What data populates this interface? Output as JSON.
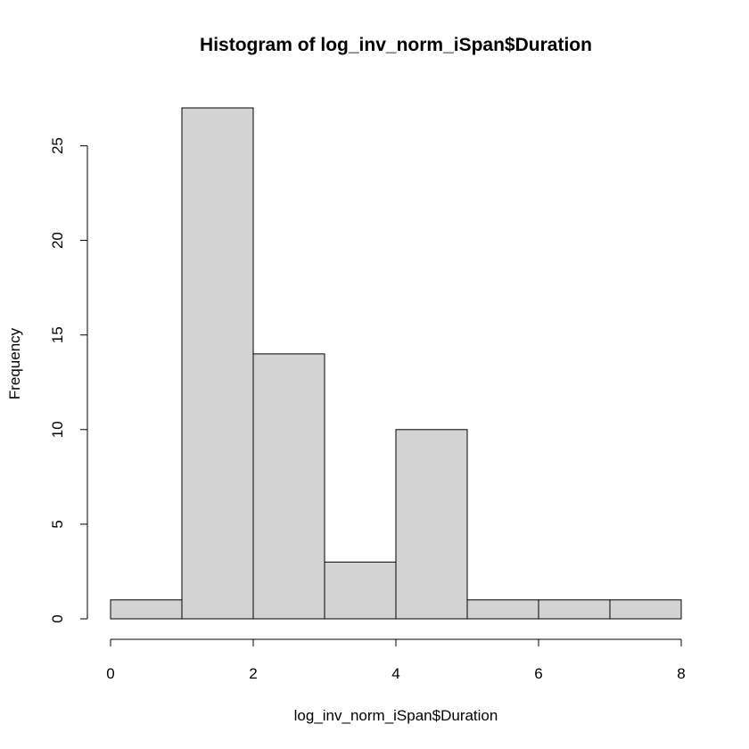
{
  "chart_data": {
    "type": "bar",
    "title": "Histogram of log_inv_norm_iSpan$Duration",
    "xlabel": "log_inv_norm_iSpan$Duration",
    "ylabel": "Frequency",
    "bins": [
      {
        "start": 0,
        "end": 1,
        "count": 1
      },
      {
        "start": 1,
        "end": 2,
        "count": 27
      },
      {
        "start": 2,
        "end": 3,
        "count": 14
      },
      {
        "start": 3,
        "end": 4,
        "count": 3
      },
      {
        "start": 4,
        "end": 5,
        "count": 10
      },
      {
        "start": 5,
        "end": 6,
        "count": 1
      },
      {
        "start": 6,
        "end": 7,
        "count": 1
      },
      {
        "start": 7,
        "end": 8,
        "count": 1
      }
    ],
    "xlim": [
      0,
      8
    ],
    "ylim": [
      0,
      27
    ],
    "x_ticks": [
      0,
      2,
      4,
      6,
      8
    ],
    "y_ticks": [
      0,
      5,
      10,
      15,
      20,
      25
    ],
    "bar_color": "#d3d3d3",
    "grid": false,
    "legend": "none"
  }
}
